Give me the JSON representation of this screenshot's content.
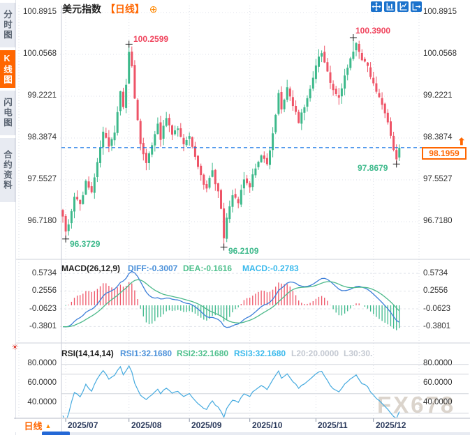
{
  "header": {
    "title": "美元指数",
    "period_tag": "【日线】",
    "zoom_icon": "⊕"
  },
  "sidebar": {
    "tabs": [
      {
        "label": "分时图",
        "active": false
      },
      {
        "label": "K线图",
        "active": true
      },
      {
        "label": "闪电图",
        "active": false
      },
      {
        "label": "合约资料",
        "active": false
      }
    ],
    "live_icon_glyph": "☀"
  },
  "toolbar": {
    "icons": [
      "crosshair-move",
      "price-axis-scale",
      "time-axis-scale",
      "export-chart"
    ]
  },
  "main_chart": {
    "y_axis_labels": [
      "100.8915",
      "100.0568",
      "99.2221",
      "98.3874",
      "97.5527",
      "96.7180"
    ],
    "annotations": {
      "high_jul": "100.2599",
      "high_nov": "100.3900",
      "low_jul": "96.3729",
      "low_sep": "96.2109",
      "low_dec": "97.8679"
    },
    "price_box": {
      "value": "98.1959",
      "arrow": "⬆"
    }
  },
  "macd_panel": {
    "title": "MACD(26,12,9)",
    "diff_label": "DIFF:-0.3007",
    "dea_label": "DEA:-0.1616",
    "macd_label": "MACD:-0.2783",
    "axis_labels": [
      "0.5734",
      "0.2556",
      "-0.0623",
      "-0.3801"
    ]
  },
  "rsi_panel": {
    "title": "RSI(14,14,14)",
    "rsi1_label": "RSI1:32.1680",
    "rsi2_label": "RSI2:32.1680",
    "rsi3_label": "RSI3:32.1680",
    "l20_label": "L20:20.0000",
    "l30_label": "L30:30.",
    "axis_labels": [
      "80.0000",
      "60.0000",
      "40.0000"
    ]
  },
  "x_axis": {
    "labels": [
      "2025/07",
      "2025/08",
      "2025/09",
      "2025/10",
      "2025/11",
      "2025/12"
    ]
  },
  "bottom_bar": {
    "period_selector": "日线",
    "arrow": "▲"
  },
  "watermark": "FX678",
  "colors": {
    "up": "#3db98b",
    "down": "#ee5467",
    "accent_orange": "#ff6600",
    "last_price_line": "#1677e6",
    "diff_line": "#3d7fd9",
    "dea_line": "#4cb98a",
    "rsi_line": "#45aadf"
  },
  "chart_data": {
    "type": "candlestick",
    "symbol": "美元指数",
    "interval": "日线",
    "main": {
      "seed": 9,
      "days": 118,
      "y_ticks": [
        100.8915,
        100.0568,
        99.2221,
        98.3874,
        97.5527,
        96.718
      ],
      "last_price": 98.1959,
      "close_anchors": [
        [
          0,
          96.85
        ],
        [
          1,
          96.5
        ],
        [
          2,
          96.7
        ],
        [
          4,
          97.2
        ],
        [
          6,
          97.05
        ],
        [
          8,
          97.5
        ],
        [
          10,
          97.3
        ],
        [
          12,
          97.9
        ],
        [
          14,
          98.5
        ],
        [
          16,
          98.2
        ],
        [
          18,
          98.45
        ],
        [
          20,
          99.3
        ],
        [
          21,
          99.0
        ],
        [
          22,
          99.45
        ],
        [
          23,
          100.1
        ],
        [
          24,
          99.85
        ],
        [
          25,
          99.2
        ],
        [
          27,
          98.3
        ],
        [
          29,
          97.9
        ],
        [
          31,
          98.2
        ],
        [
          33,
          98.65
        ],
        [
          34,
          98.4
        ],
        [
          36,
          98.8
        ],
        [
          38,
          98.5
        ],
        [
          40,
          98.6
        ],
        [
          42,
          98.3
        ],
        [
          44,
          98.4
        ],
        [
          46,
          98.0
        ],
        [
          48,
          97.6
        ],
        [
          50,
          97.4
        ],
        [
          52,
          97.7
        ],
        [
          54,
          97.3
        ],
        [
          55,
          96.95
        ],
        [
          56,
          96.4
        ],
        [
          57,
          96.75
        ],
        [
          59,
          97.25
        ],
        [
          61,
          97.1
        ],
        [
          63,
          97.55
        ],
        [
          65,
          97.45
        ],
        [
          67,
          97.8
        ],
        [
          69,
          98.05
        ],
        [
          71,
          97.85
        ],
        [
          73,
          98.45
        ],
        [
          75,
          99.25
        ],
        [
          76,
          99.0
        ],
        [
          78,
          99.4
        ],
        [
          80,
          99.05
        ],
        [
          82,
          98.7
        ],
        [
          84,
          99.0
        ],
        [
          86,
          99.4
        ],
        [
          88,
          99.85
        ],
        [
          90,
          100.1
        ],
        [
          92,
          99.7
        ],
        [
          94,
          99.35
        ],
        [
          96,
          99.15
        ],
        [
          98,
          99.6
        ],
        [
          100,
          100.0
        ],
        [
          102,
          100.25
        ],
        [
          104,
          99.95
        ],
        [
          106,
          99.8
        ],
        [
          108,
          99.45
        ],
        [
          110,
          99.2
        ],
        [
          112,
          98.9
        ],
        [
          114,
          98.4
        ],
        [
          115,
          98.15
        ],
        [
          116,
          97.95
        ],
        [
          117,
          98.1959
        ]
      ],
      "markers": [
        {
          "day": 1,
          "kind": "low",
          "value": 96.3729
        },
        {
          "day": 23,
          "kind": "high",
          "value": 100.2599
        },
        {
          "day": 56,
          "kind": "low",
          "value": 96.2109
        },
        {
          "day": 101,
          "kind": "high",
          "value": 100.39
        },
        {
          "day": 116,
          "kind": "low",
          "value": 97.8679
        }
      ],
      "month_ticks": [
        {
          "label": "2025/07",
          "day": 1
        },
        {
          "label": "2025/08",
          "day": 23
        },
        {
          "label": "2025/09",
          "day": 44
        },
        {
          "label": "2025/10",
          "day": 65
        },
        {
          "label": "2025/11",
          "day": 88
        },
        {
          "label": "2025/12",
          "day": 108
        }
      ]
    },
    "macd": {
      "params": [
        26,
        12,
        9
      ],
      "diff": -0.3007,
      "dea": -0.1616,
      "macd": -0.2783,
      "y_ticks": [
        0.5734,
        0.2556,
        -0.0623,
        -0.3801
      ]
    },
    "rsi": {
      "params": [
        14,
        14,
        14
      ],
      "rsi1": 32.168,
      "rsi2": 32.168,
      "rsi3": 32.168,
      "l20": 20.0,
      "l30": 30.0,
      "y_ticks": [
        80.0,
        60.0,
        40.0
      ]
    }
  }
}
